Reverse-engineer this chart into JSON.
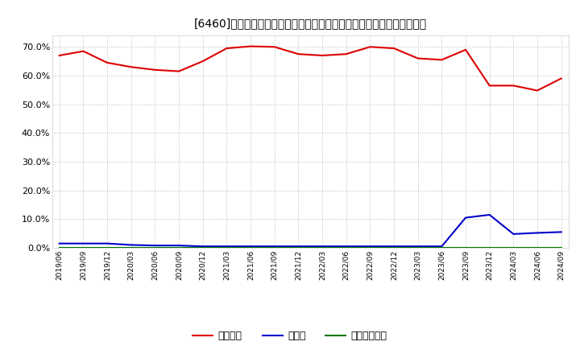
{
  "title": "[6460]　自己資本、のれん、繰延税金資産の総資産に対する比率の推移",
  "x_labels": [
    "2019/06",
    "2019/09",
    "2019/12",
    "2020/03",
    "2020/06",
    "2020/09",
    "2020/12",
    "2021/03",
    "2021/06",
    "2021/09",
    "2021/12",
    "2022/03",
    "2022/06",
    "2022/09",
    "2022/12",
    "2023/03",
    "2023/06",
    "2023/09",
    "2023/12",
    "2024/03",
    "2024/06",
    "2024/09"
  ],
  "jikoshihon": [
    67.0,
    68.5,
    64.5,
    63.0,
    62.0,
    61.5,
    65.0,
    69.5,
    70.2,
    70.0,
    67.5,
    67.0,
    67.5,
    70.0,
    69.5,
    66.0,
    65.5,
    69.0,
    56.5,
    56.5,
    54.8,
    59.0
  ],
  "noren": [
    1.5,
    1.5,
    1.5,
    1.0,
    0.8,
    0.8,
    0.5,
    0.5,
    0.5,
    0.5,
    0.5,
    0.5,
    0.5,
    0.5,
    0.5,
    0.5,
    0.5,
    10.5,
    11.5,
    4.8,
    5.2,
    5.5
  ],
  "kuenzeichkin": [
    0.0,
    0.0,
    0.0,
    0.0,
    0.0,
    0.0,
    0.0,
    0.0,
    0.0,
    0.0,
    0.0,
    0.0,
    0.0,
    0.0,
    0.0,
    0.0,
    0.0,
    0.0,
    0.0,
    0.0,
    0.0,
    0.0
  ],
  "jikoshihon_color": "#dd0000",
  "noren_color": "#0000cc",
  "kuenzeichkin_color": "#007700",
  "bg_color": "#ffffff",
  "plot_bg_color": "#ffffff",
  "grid_color": "#bbbbbb",
  "ylim": [
    0.0,
    74.0
  ],
  "yticks": [
    0.0,
    10.0,
    20.0,
    30.0,
    40.0,
    50.0,
    60.0,
    70.0
  ],
  "legend_labels": [
    "自己資本",
    "のれん",
    "繰延税金資産"
  ]
}
